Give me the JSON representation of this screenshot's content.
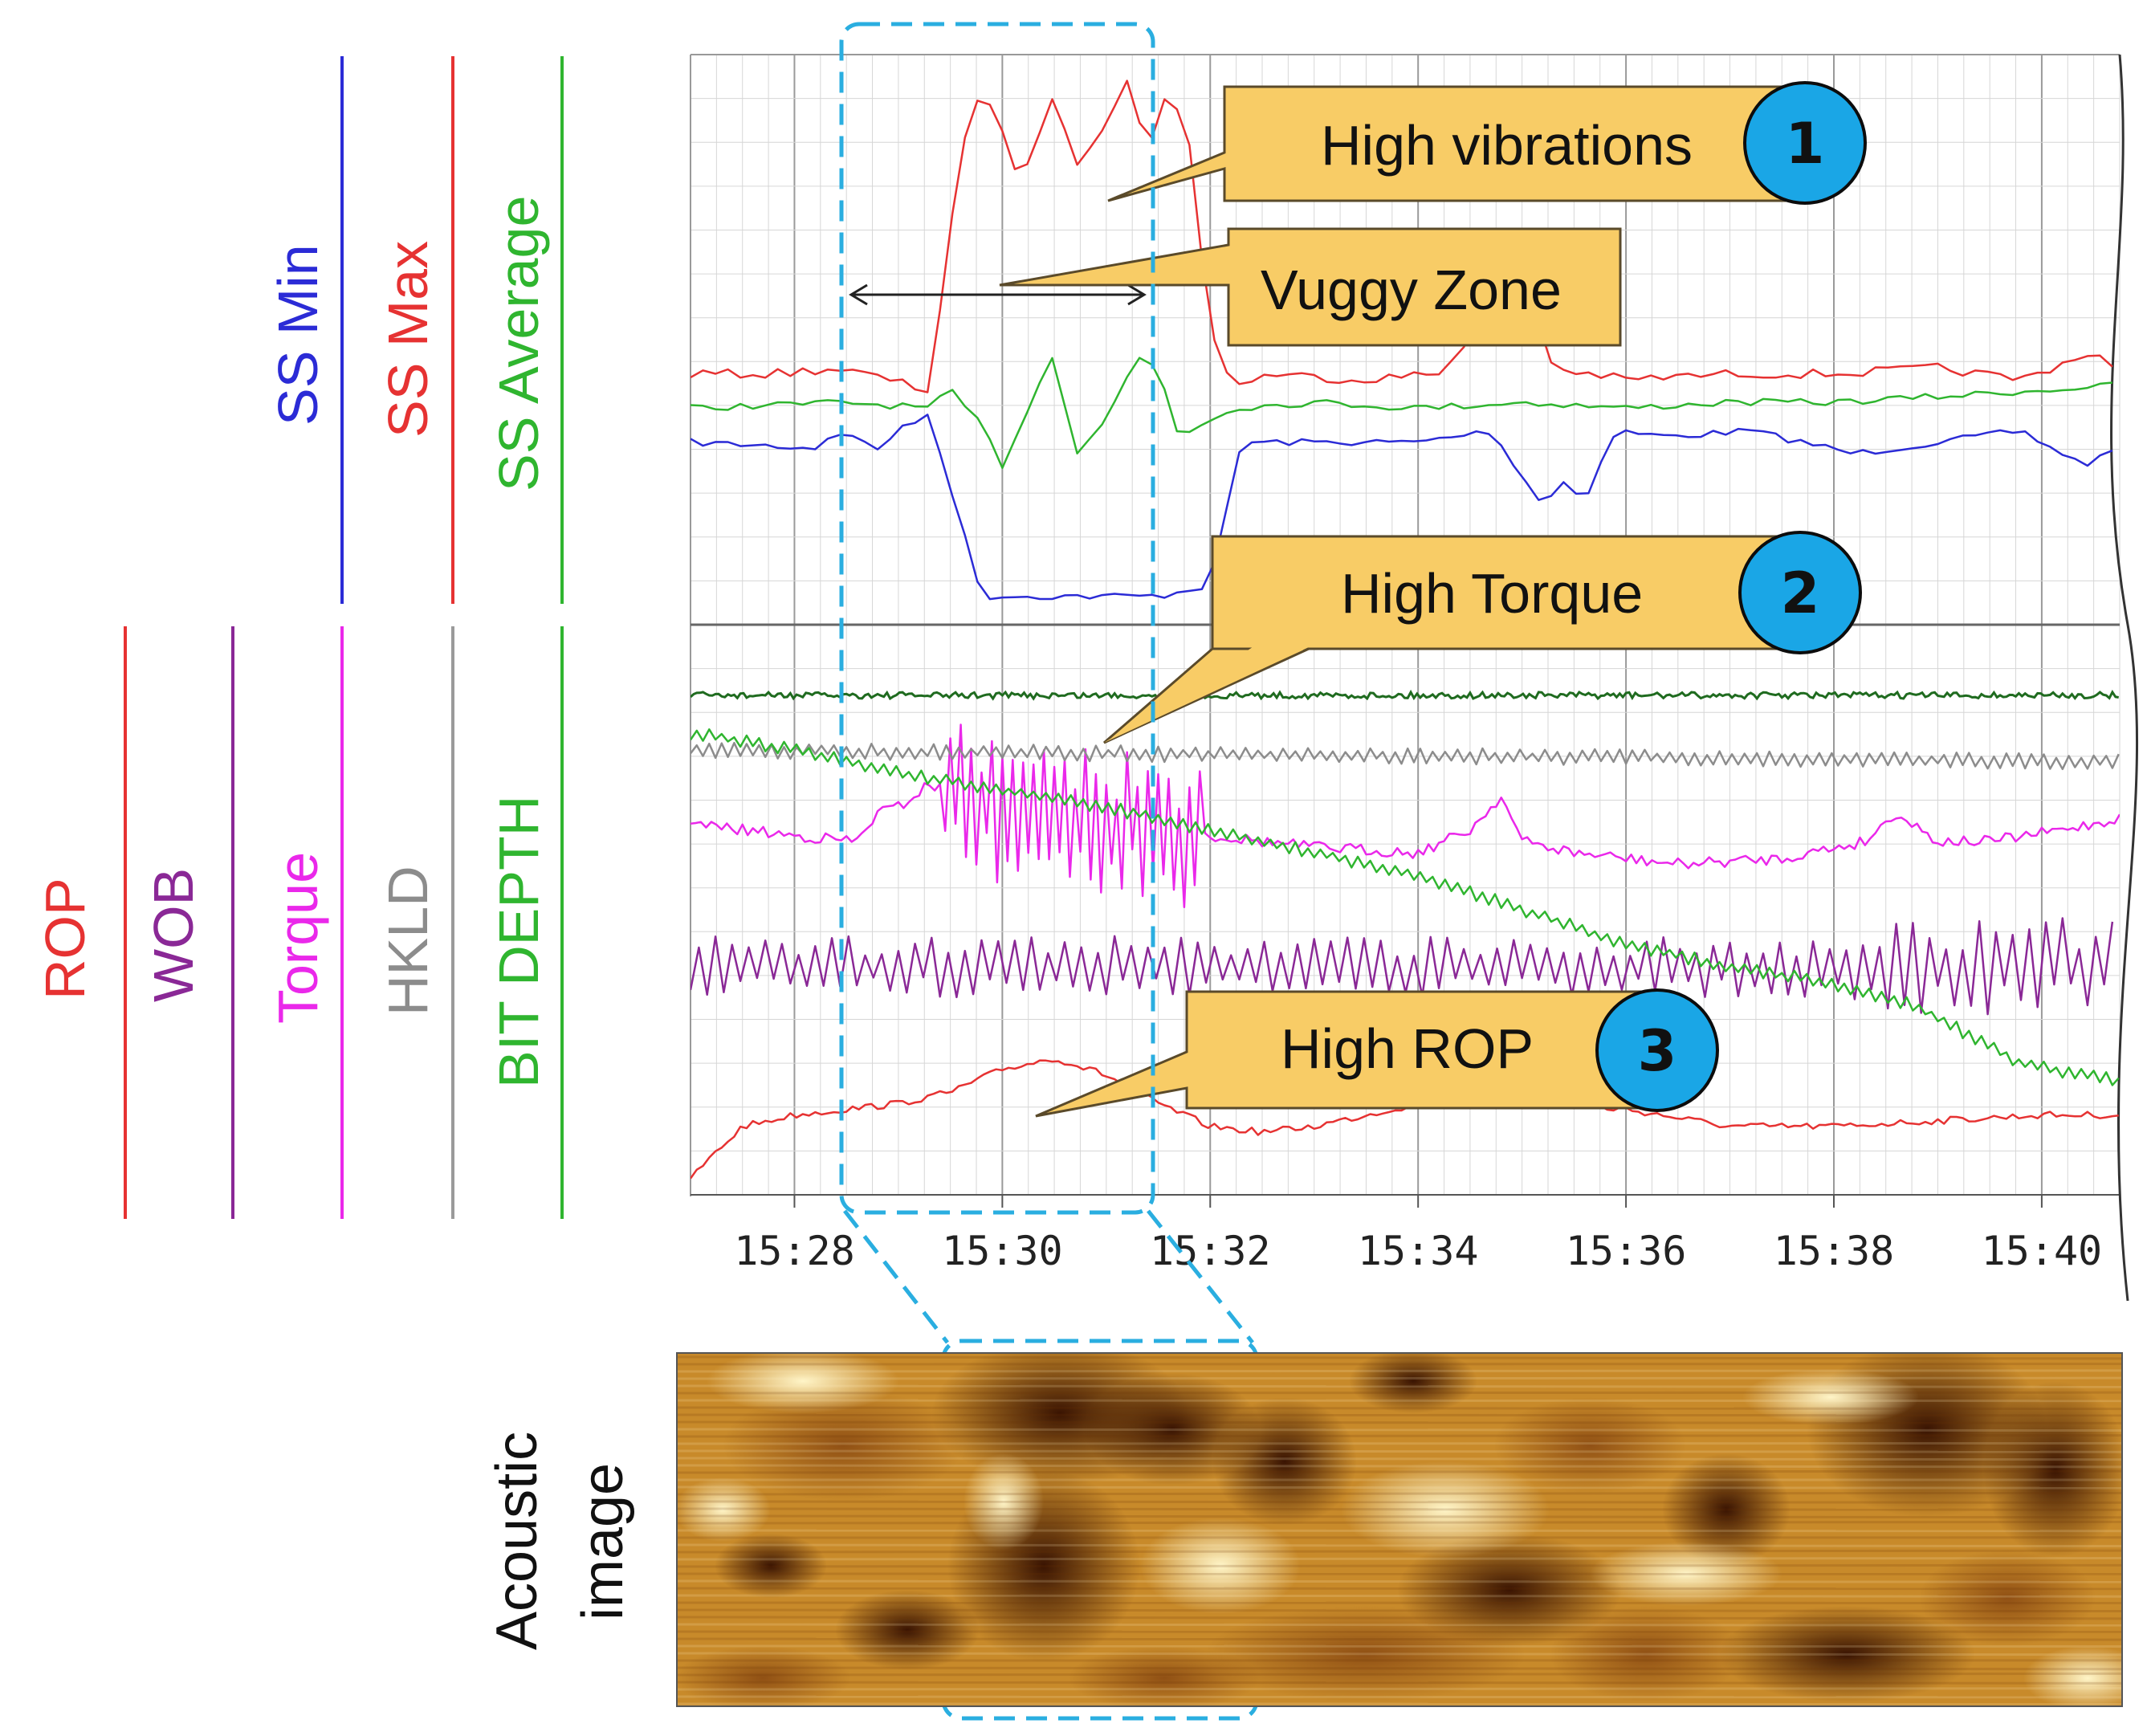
{
  "chart_data": {
    "type": "line",
    "x_unit": "time (hh:mm)",
    "xlim": [
      "15:27:00",
      "15:40:45"
    ],
    "x_ticks": [
      "15:28",
      "15:30",
      "15:32",
      "15:34",
      "15:36",
      "15:38",
      "15:40"
    ],
    "panels": [
      {
        "name": "stick-slip",
        "tracks": [
          {
            "label": "SS Min",
            "color": "#2b2bd6",
            "points": [
              [
                0,
                0.68
              ],
              [
                1.2,
                0.69
              ],
              [
                1.4,
                0.66
              ],
              [
                1.8,
                0.69
              ],
              [
                2.0,
                0.66
              ],
              [
                2.3,
                0.63
              ],
              [
                2.8,
                0.95
              ],
              [
                3.5,
                0.95
              ],
              [
                4.5,
                0.95
              ],
              [
                5.0,
                0.93
              ],
              [
                5.3,
                0.68
              ],
              [
                6.0,
                0.68
              ],
              [
                7.0,
                0.68
              ],
              [
                7.7,
                0.66
              ],
              [
                8.2,
                0.79
              ],
              [
                8.4,
                0.75
              ],
              [
                8.6,
                0.78
              ],
              [
                8.9,
                0.66
              ],
              [
                9.4,
                0.67
              ],
              [
                10.2,
                0.66
              ],
              [
                11.2,
                0.7
              ],
              [
                12.0,
                0.68
              ],
              [
                12.8,
                0.66
              ],
              [
                13.4,
                0.72
              ],
              [
                13.75,
                0.69
              ]
            ]
          },
          {
            "label": "SS Max",
            "color": "#e63232",
            "points": [
              [
                0,
                0.56
              ],
              [
                0.8,
                0.56
              ],
              [
                1.4,
                0.55
              ],
              [
                1.9,
                0.57
              ],
              [
                2.3,
                0.59
              ],
              [
                2.5,
                0.3
              ],
              [
                2.7,
                0.09
              ],
              [
                2.9,
                0.08
              ],
              [
                3.1,
                0.2
              ],
              [
                3.3,
                0.18
              ],
              [
                3.5,
                0.06
              ],
              [
                3.7,
                0.19
              ],
              [
                4.0,
                0.12
              ],
              [
                4.2,
                0.05
              ],
              [
                4.4,
                0.16
              ],
              [
                4.6,
                0.06
              ],
              [
                4.8,
                0.16
              ],
              [
                5.0,
                0.48
              ],
              [
                5.2,
                0.58
              ],
              [
                5.6,
                0.56
              ],
              [
                6.4,
                0.57
              ],
              [
                7.2,
                0.56
              ],
              [
                7.6,
                0.47
              ],
              [
                7.9,
                0.31
              ],
              [
                8.1,
                0.44
              ],
              [
                8.3,
                0.55
              ],
              [
                9.0,
                0.57
              ],
              [
                10.0,
                0.56
              ],
              [
                11.0,
                0.56
              ],
              [
                12.0,
                0.55
              ],
              [
                12.8,
                0.57
              ],
              [
                13.5,
                0.52
              ],
              [
                13.75,
                0.56
              ]
            ]
          },
          {
            "label": "SS Average",
            "color": "#2fb52f",
            "points": [
              [
                0,
                0.62
              ],
              [
                1.5,
                0.61
              ],
              [
                2.3,
                0.62
              ],
              [
                2.5,
                0.59
              ],
              [
                2.8,
                0.65
              ],
              [
                3.0,
                0.72
              ],
              [
                3.3,
                0.6
              ],
              [
                3.5,
                0.52
              ],
              [
                3.7,
                0.7
              ],
              [
                4.0,
                0.64
              ],
              [
                4.3,
                0.53
              ],
              [
                4.5,
                0.55
              ],
              [
                4.7,
                0.67
              ],
              [
                5.2,
                0.62
              ],
              [
                6.0,
                0.61
              ],
              [
                7.0,
                0.62
              ],
              [
                8.0,
                0.61
              ],
              [
                9.0,
                0.62
              ],
              [
                10.0,
                0.61
              ],
              [
                11.0,
                0.61
              ],
              [
                12.0,
                0.6
              ],
              [
                13.75,
                0.58
              ]
            ]
          }
        ]
      },
      {
        "name": "drilling",
        "tracks": [
          {
            "label": "ROP",
            "color": "#e63232",
            "points": [
              [
                0,
                0.97
              ],
              [
                0.5,
                0.88
              ],
              [
                1.0,
                0.86
              ],
              [
                1.5,
                0.85
              ],
              [
                2.0,
                0.84
              ],
              [
                2.5,
                0.82
              ],
              [
                3.0,
                0.78
              ],
              [
                3.5,
                0.76
              ],
              [
                4.0,
                0.79
              ],
              [
                4.5,
                0.84
              ],
              [
                5.0,
                0.88
              ],
              [
                5.5,
                0.89
              ],
              [
                6.0,
                0.88
              ],
              [
                6.5,
                0.86
              ],
              [
                7.0,
                0.84
              ],
              [
                8.0,
                0.84
              ],
              [
                9.0,
                0.85
              ],
              [
                10.0,
                0.88
              ],
              [
                11.0,
                0.88
              ],
              [
                12.0,
                0.87
              ],
              [
                13.0,
                0.86
              ],
              [
                13.75,
                0.86
              ]
            ]
          },
          {
            "label": "WOB",
            "color": "#8a2896",
            "points": [
              [
                0,
                0.6
              ],
              [
                13.75,
                0.6
              ]
            ]
          },
          {
            "label": "Torque",
            "color": "#ea28ea",
            "points": [
              [
                0,
                0.35
              ],
              [
                1.0,
                0.37
              ],
              [
                1.6,
                0.38
              ],
              [
                1.8,
                0.33
              ],
              [
                2.0,
                0.32
              ],
              [
                2.3,
                0.28
              ],
              [
                2.6,
                0.3
              ],
              [
                3.0,
                0.34
              ],
              [
                4.0,
                0.35
              ],
              [
                4.5,
                0.36
              ],
              [
                5.0,
                0.37
              ],
              [
                6.0,
                0.39
              ],
              [
                7.0,
                0.4
              ],
              [
                7.5,
                0.36
              ],
              [
                7.8,
                0.3
              ],
              [
                8.0,
                0.38
              ],
              [
                8.5,
                0.4
              ],
              [
                9.5,
                0.42
              ],
              [
                10.5,
                0.41
              ],
              [
                11.3,
                0.38
              ],
              [
                11.6,
                0.33
              ],
              [
                12.0,
                0.38
              ],
              [
                12.5,
                0.38
              ],
              [
                13.2,
                0.36
              ],
              [
                13.75,
                0.34
              ]
            ]
          },
          {
            "label": "HKLD",
            "color": "#8c8c8c",
            "points": [
              [
                0,
                0.22
              ],
              [
                13.75,
                0.24
              ]
            ]
          },
          {
            "label": "BIT DEPTH",
            "color": "#2fb52f",
            "points": [
              [
                0,
                0.19
              ],
              [
                1.0,
                0.22
              ],
              [
                2.0,
                0.26
              ],
              [
                3.0,
                0.29
              ],
              [
                4.0,
                0.32
              ],
              [
                5.0,
                0.36
              ],
              [
                6.0,
                0.4
              ],
              [
                7.0,
                0.44
              ],
              [
                8.0,
                0.5
              ],
              [
                9.0,
                0.56
              ],
              [
                10.0,
                0.6
              ],
              [
                11.0,
                0.63
              ],
              [
                11.8,
                0.67
              ],
              [
                12.3,
                0.72
              ],
              [
                12.8,
                0.77
              ],
              [
                13.75,
                0.8
              ]
            ]
          }
        ]
      }
    ],
    "annotations": [
      {
        "number": "1",
        "text": "High vibrations"
      },
      {
        "number": "",
        "text": "Vuggy Zone"
      },
      {
        "number": "2",
        "text": "High Torque"
      },
      {
        "number": "3",
        "text": "High ROP"
      }
    ],
    "highlight_window": [
      "15:28:45",
      "15:31:45"
    ]
  },
  "labels": {
    "top_tracks": [
      "SS Min",
      "SS Max",
      "SS Average"
    ],
    "bottom_tracks": [
      "ROP",
      "WOB",
      "Torque",
      "HKLD",
      "BIT DEPTH"
    ],
    "acoustic_line1": "Acoustic",
    "acoustic_line2": "image"
  },
  "colors": {
    "callout_fill": "#f8cc66",
    "callout_stroke": "#5a4a2a",
    "badge_fill": "#1aa6e6",
    "highlight": "#2aaee0",
    "grid": "#c8c8c8"
  }
}
